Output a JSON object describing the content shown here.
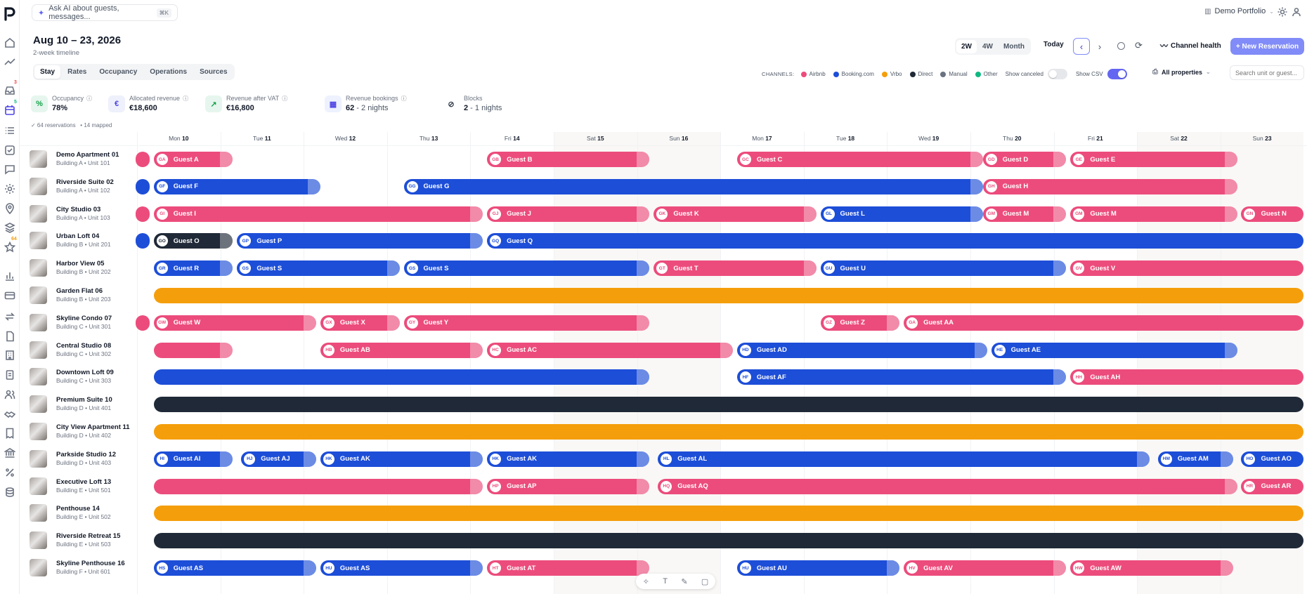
{
  "app": {
    "colors": {
      "accent": "#6366f1",
      "accent_light": "#818cf8"
    }
  },
  "topbar": {
    "ask_ai": "Ask AI about guests, messages...",
    "shortcut": "⌘K",
    "portfolio": "Demo Portfolio"
  },
  "page": {
    "date_range": "Aug 10 – 23, 2026",
    "subtitle": "2-week timeline"
  },
  "view_tabs": [
    "Stay",
    "Rates",
    "Occupancy",
    "Operations",
    "Sources"
  ],
  "range_segment": [
    "2W",
    "4W",
    "Month"
  ],
  "toolbar": {
    "today": "Today",
    "prev": "‹",
    "next": "›",
    "channel_health": "Channel health",
    "new_reservation": "+ New Reservation"
  },
  "channels": {
    "label": "CHANNELS:",
    "items": [
      {
        "name": "Airbnb",
        "color": "#ec4c7c"
      },
      {
        "name": "Booking.com",
        "color": "#1d4ed8"
      },
      {
        "name": "Vrbo",
        "color": "#f59e0b"
      },
      {
        "name": "Direct",
        "color": "#1f2937"
      },
      {
        "name": "Manual",
        "color": "#6b7280"
      },
      {
        "name": "Other",
        "color": "#10b981"
      }
    ],
    "show_canceled": "Show canceled",
    "show_csv": "Show CSV",
    "all_properties": "All properties",
    "search_placeholder": "Search unit or guest..."
  },
  "stats": [
    {
      "label": "Occupancy",
      "value": "78%",
      "icon": "%",
      "icon_bg": "#e6f6ee",
      "icon_fg": "#16a34a"
    },
    {
      "label": "Allocated revenue",
      "value": "€18,600",
      "icon": "€",
      "icon_bg": "#eef0fb",
      "icon_fg": "#4f46e5"
    },
    {
      "label": "Revenue after VAT",
      "value": "€16,800",
      "icon": "↗",
      "icon_bg": "#e6f6ee",
      "icon_fg": "#16a34a"
    },
    {
      "label": "Revenue bookings",
      "value": "62",
      "value_extra": " - 2 nights",
      "icon": "▦",
      "icon_bg": "#eef2ff",
      "icon_fg": "#4f46e5"
    },
    {
      "label": "Blocks",
      "value": "2",
      "value_extra": " - 1 nights",
      "icon": "⊘",
      "icon_bg": "#fff",
      "icon_fg": "#374151"
    }
  ],
  "summary": {
    "reservations": "✓ 64 reservations",
    "mapped": "• 14 mapped"
  },
  "days": [
    {
      "dow": "Mon",
      "num": "10",
      "weekend": false
    },
    {
      "dow": "Tue",
      "num": "11",
      "weekend": false
    },
    {
      "dow": "Wed",
      "num": "12",
      "weekend": false
    },
    {
      "dow": "Thu",
      "num": "13",
      "weekend": false
    },
    {
      "dow": "Fri",
      "num": "14",
      "weekend": false
    },
    {
      "dow": "Sat",
      "num": "15",
      "weekend": true
    },
    {
      "dow": "Sun",
      "num": "16",
      "weekend": true
    },
    {
      "dow": "Mon",
      "num": "17",
      "weekend": false
    },
    {
      "dow": "Tue",
      "num": "18",
      "weekend": false
    },
    {
      "dow": "Wed",
      "num": "19",
      "weekend": false
    },
    {
      "dow": "Thu",
      "num": "20",
      "weekend": false
    },
    {
      "dow": "Fri",
      "num": "21",
      "weekend": false
    },
    {
      "dow": "Sat",
      "num": "22",
      "weekend": true
    },
    {
      "dow": "Sun",
      "num": "23",
      "weekend": true
    }
  ],
  "units": [
    {
      "name": "Demo Apartment 01",
      "location": "Building A • Unit 101",
      "bookings": [
        {
          "guest": "",
          "initials": "",
          "channel": "Airbnb",
          "start": -0.2,
          "end": 0.15
        },
        {
          "guest": "Guest A",
          "initials": "GA",
          "channel": "Airbnb",
          "start": 0.2,
          "end": 1.15
        },
        {
          "guest": "Guest B",
          "initials": "GB",
          "channel": "Airbnb",
          "start": 4.2,
          "end": 6.15
        },
        {
          "guest": "Guest C",
          "initials": "GC",
          "channel": "Airbnb",
          "start": 7.2,
          "end": 10.15
        },
        {
          "guest": "Guest D",
          "initials": "GD",
          "channel": "Airbnb",
          "start": 10.15,
          "end": 11.15
        },
        {
          "guest": "Guest E",
          "initials": "GE",
          "channel": "Airbnb",
          "start": 11.2,
          "end": 13.2
        }
      ]
    },
    {
      "name": "Riverside Suite 02",
      "location": "Building A • Unit 102",
      "bookings": [
        {
          "guest": "",
          "initials": "",
          "channel": "Booking.com",
          "start": -0.2,
          "end": 0.15
        },
        {
          "guest": "Guest F",
          "initials": "GF",
          "channel": "Booking.com",
          "start": 0.2,
          "end": 2.2
        },
        {
          "guest": "Guest G",
          "initials": "GG",
          "channel": "Booking.com",
          "start": 3.2,
          "end": 10.15
        },
        {
          "guest": "Guest H",
          "initials": "GH",
          "channel": "Airbnb",
          "start": 10.15,
          "end": 13.2
        }
      ]
    },
    {
      "name": "City Studio 03",
      "location": "Building A • Unit 103",
      "bookings": [
        {
          "guest": "",
          "initials": "",
          "channel": "Airbnb",
          "start": -0.2,
          "end": 0.15
        },
        {
          "guest": "Guest I",
          "initials": "GI",
          "channel": "Airbnb",
          "start": 0.2,
          "end": 4.15
        },
        {
          "guest": "Guest J",
          "initials": "GJ",
          "channel": "Airbnb",
          "start": 4.2,
          "end": 6.15
        },
        {
          "guest": "Guest K",
          "initials": "GK",
          "channel": "Airbnb",
          "start": 6.2,
          "end": 8.15
        },
        {
          "guest": "Guest L",
          "initials": "GL",
          "channel": "Booking.com",
          "start": 8.2,
          "end": 10.15
        },
        {
          "guest": "Guest M",
          "initials": "GM",
          "channel": "Airbnb",
          "start": 10.15,
          "end": 11.15
        },
        {
          "guest": "Guest M",
          "initials": "GM",
          "channel": "Airbnb",
          "start": 11.2,
          "end": 13.2
        },
        {
          "guest": "Guest N",
          "initials": "GN",
          "channel": "Airbnb",
          "start": 13.25,
          "end": 14.2
        }
      ]
    },
    {
      "name": "Urban Loft 04",
      "location": "Building B • Unit 201",
      "bookings": [
        {
          "guest": "",
          "initials": "",
          "channel": "Booking.com",
          "start": -0.2,
          "end": 0.15
        },
        {
          "guest": "Guest O",
          "initials": "GO",
          "channel": "Direct",
          "start": 0.2,
          "end": 1.15
        },
        {
          "guest": "Guest P",
          "initials": "GP",
          "channel": "Booking.com",
          "start": 1.2,
          "end": 4.15
        },
        {
          "guest": "Guest Q",
          "initials": "GQ",
          "channel": "Booking.com",
          "start": 4.2,
          "end": 14.2
        }
      ]
    },
    {
      "name": "Harbor View 05",
      "location": "Building B • Unit 202",
      "bookings": [
        {
          "guest": "Guest R",
          "initials": "GR",
          "channel": "Booking.com",
          "start": 0.2,
          "end": 1.15
        },
        {
          "guest": "Guest S",
          "initials": "GS",
          "channel": "Booking.com",
          "start": 1.2,
          "end": 3.15
        },
        {
          "guest": "Guest S",
          "initials": "GS",
          "channel": "Booking.com",
          "start": 3.2,
          "end": 6.15
        },
        {
          "guest": "Guest T",
          "initials": "GT",
          "channel": "Airbnb",
          "start": 6.2,
          "end": 8.15
        },
        {
          "guest": "Guest U",
          "initials": "GU",
          "channel": "Booking.com",
          "start": 8.2,
          "end": 11.15
        },
        {
          "guest": "Guest V",
          "initials": "GV",
          "channel": "Airbnb",
          "start": 11.2,
          "end": 14.2
        }
      ]
    },
    {
      "name": "Garden Flat 06",
      "location": "Building B • Unit 203",
      "bookings": [
        {
          "guest": "",
          "initials": "",
          "channel": "Vrbo",
          "start": 0.2,
          "end": 14.2
        }
      ]
    },
    {
      "name": "Skyline Condo 07",
      "location": "Building C • Unit 301",
      "bookings": [
        {
          "guest": "",
          "initials": "",
          "channel": "Airbnb",
          "start": -0.2,
          "end": 0.15
        },
        {
          "guest": "Guest W",
          "initials": "GW",
          "channel": "Airbnb",
          "start": 0.2,
          "end": 2.15
        },
        {
          "guest": "Guest X",
          "initials": "GX",
          "channel": "Airbnb",
          "start": 2.2,
          "end": 3.15
        },
        {
          "guest": "Guest Y",
          "initials": "GY",
          "channel": "Airbnb",
          "start": 3.2,
          "end": 6.15
        },
        {
          "guest": "Guest Z",
          "initials": "GZ",
          "channel": "Airbnb",
          "start": 8.2,
          "end": 9.15
        },
        {
          "guest": "Guest AA",
          "initials": "GA",
          "channel": "Airbnb",
          "start": 9.2,
          "end": 14.2
        }
      ]
    },
    {
      "name": "Central Studio 08",
      "location": "Building C • Unit 302",
      "bookings": [
        {
          "guest": "",
          "initials": "",
          "channel": "Airbnb",
          "start": 0.2,
          "end": 1.15
        },
        {
          "guest": "Guest AB",
          "initials": "HB",
          "channel": "Airbnb",
          "start": 2.2,
          "end": 4.15
        },
        {
          "guest": "Guest AC",
          "initials": "HC",
          "channel": "Airbnb",
          "start": 4.2,
          "end": 7.15
        },
        {
          "guest": "Guest AD",
          "initials": "HD",
          "channel": "Booking.com",
          "start": 7.2,
          "end": 10.2
        },
        {
          "guest": "Guest AE",
          "initials": "HE",
          "channel": "Booking.com",
          "start": 10.25,
          "end": 13.2
        }
      ]
    },
    {
      "name": "Downtown Loft 09",
      "location": "Building C • Unit 303",
      "bookings": [
        {
          "guest": "",
          "initials": "",
          "channel": "Booking.com",
          "start": 0.2,
          "end": 6.15
        },
        {
          "guest": "Guest AF",
          "initials": "HF",
          "channel": "Booking.com",
          "start": 7.2,
          "end": 11.15
        },
        {
          "guest": "Guest AH",
          "initials": "HH",
          "channel": "Airbnb",
          "start": 11.2,
          "end": 14.2
        }
      ]
    },
    {
      "name": "Premium Suite 10",
      "location": "Building D • Unit 401",
      "bookings": [
        {
          "guest": "",
          "initials": "",
          "channel": "Direct",
          "start": 0.2,
          "end": 14.2
        }
      ]
    },
    {
      "name": "City View Apartment 11",
      "location": "Building D • Unit 402",
      "bookings": [
        {
          "guest": "",
          "initials": "",
          "channel": "Vrbo",
          "start": 0.2,
          "end": 14.2
        }
      ]
    },
    {
      "name": "Parkside Studio 12",
      "location": "Building D • Unit 403",
      "bookings": [
        {
          "guest": "Guest AI",
          "initials": "HI",
          "channel": "Booking.com",
          "start": 0.2,
          "end": 1.15
        },
        {
          "guest": "Guest AJ",
          "initials": "HJ",
          "channel": "Booking.com",
          "start": 1.25,
          "end": 2.15
        },
        {
          "guest": "Guest AK",
          "initials": "HK",
          "channel": "Booking.com",
          "start": 2.2,
          "end": 4.15
        },
        {
          "guest": "Guest AK",
          "initials": "HK",
          "channel": "Booking.com",
          "start": 4.2,
          "end": 6.15
        },
        {
          "guest": "Guest AL",
          "initials": "HL",
          "channel": "Booking.com",
          "start": 6.25,
          "end": 12.15
        },
        {
          "guest": "Guest AM",
          "initials": "HM",
          "channel": "Booking.com",
          "start": 12.25,
          "end": 13.15
        },
        {
          "guest": "Guest AO",
          "initials": "HO",
          "channel": "Booking.com",
          "start": 13.25,
          "end": 14.2
        }
      ]
    },
    {
      "name": "Executive Loft 13",
      "location": "Building E • Unit 501",
      "bookings": [
        {
          "guest": "",
          "initials": "",
          "channel": "Airbnb",
          "start": 0.2,
          "end": 4.15
        },
        {
          "guest": "Guest AP",
          "initials": "HP",
          "channel": "Airbnb",
          "start": 4.2,
          "end": 6.15
        },
        {
          "guest": "Guest AQ",
          "initials": "HQ",
          "channel": "Airbnb",
          "start": 6.25,
          "end": 13.2
        },
        {
          "guest": "Guest AR",
          "initials": "HR",
          "channel": "Airbnb",
          "start": 13.25,
          "end": 14.2
        }
      ]
    },
    {
      "name": "Penthouse 14",
      "location": "Building E • Unit 502",
      "bookings": [
        {
          "guest": "",
          "initials": "",
          "channel": "Vrbo",
          "start": 0.2,
          "end": 14.2
        }
      ]
    },
    {
      "name": "Riverside Retreat 15",
      "location": "Building E • Unit 503",
      "bookings": [
        {
          "guest": "",
          "initials": "",
          "channel": "Direct",
          "start": 0.2,
          "end": 14.2
        }
      ]
    },
    {
      "name": "Skyline Penthouse 16",
      "location": "Building F • Unit 601",
      "bookings": [
        {
          "guest": "Guest AS",
          "initials": "HS",
          "channel": "Booking.com",
          "start": 0.2,
          "end": 2.15
        },
        {
          "guest": "Guest AS",
          "initials": "HU",
          "channel": "Booking.com",
          "start": 2.2,
          "end": 4.15
        },
        {
          "guest": "Guest AT",
          "initials": "HT",
          "channel": "Airbnb",
          "start": 4.2,
          "end": 6.15
        },
        {
          "guest": "Guest AU",
          "initials": "HU",
          "channel": "Booking.com",
          "start": 7.2,
          "end": 9.15
        },
        {
          "guest": "Guest AV",
          "initials": "HV",
          "channel": "Airbnb",
          "start": 9.2,
          "end": 11.15
        },
        {
          "guest": "Guest AW",
          "initials": "HW",
          "channel": "Airbnb",
          "start": 11.2,
          "end": 13.15
        }
      ]
    }
  ],
  "rail_badges": {
    "inbox": "3",
    "calendar": "5",
    "reviews": "64"
  }
}
